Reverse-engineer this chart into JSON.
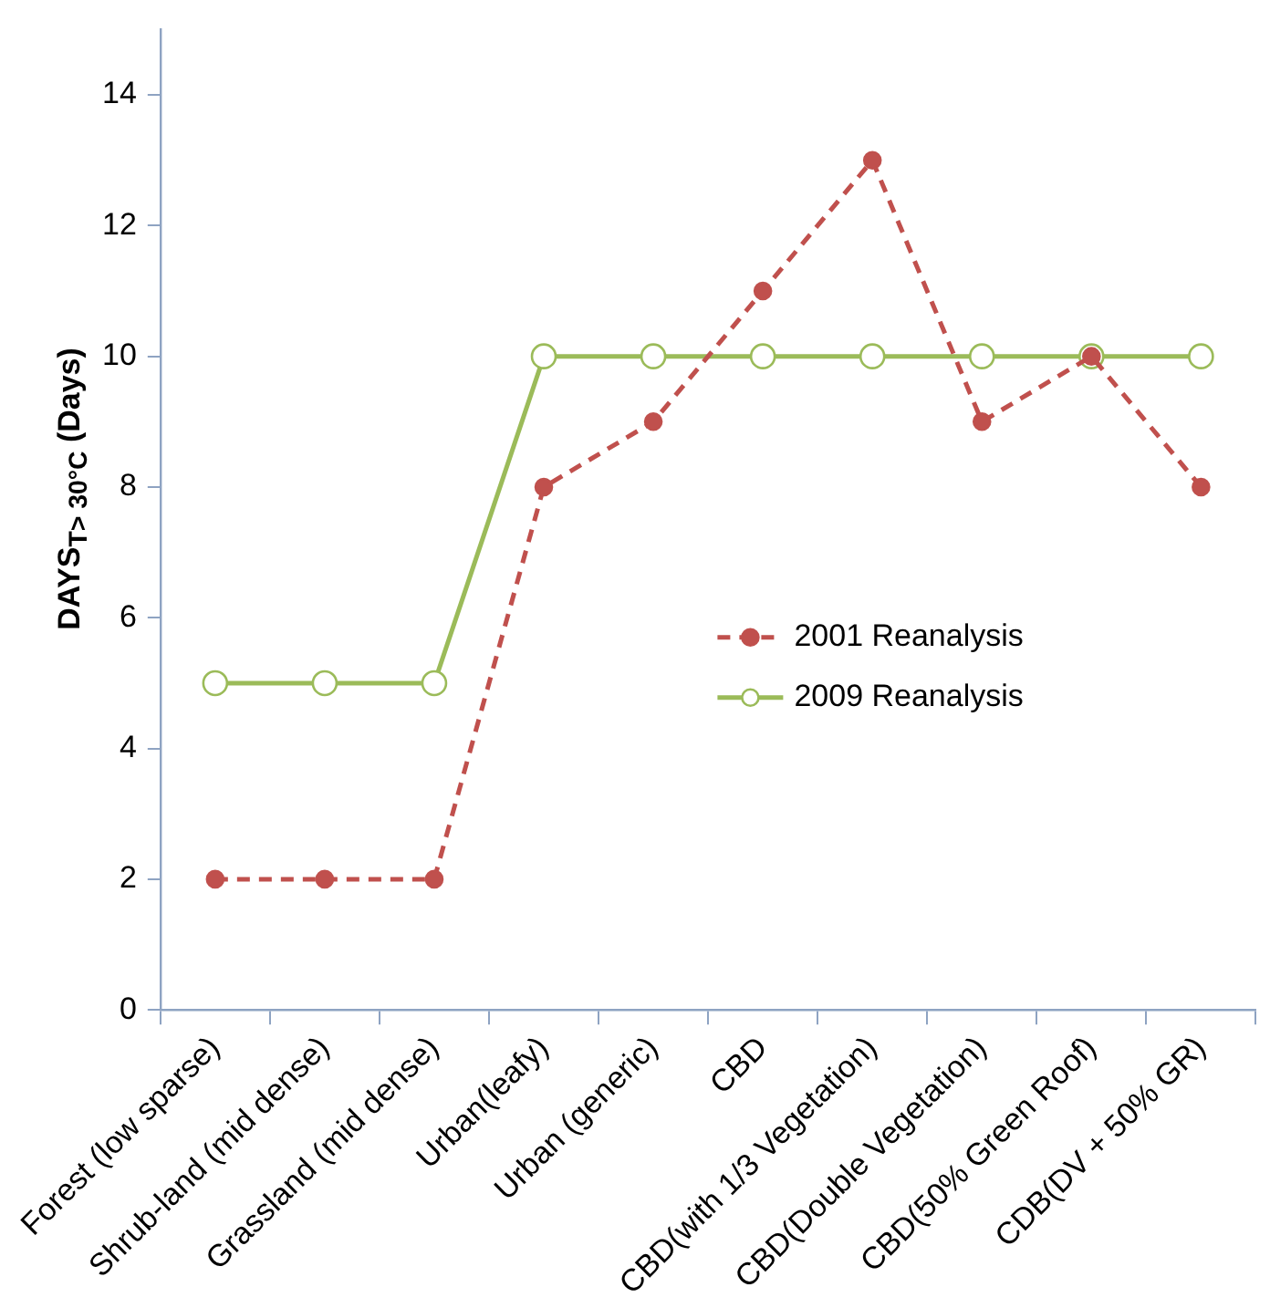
{
  "chart_data": {
    "type": "line",
    "ylabel": "DAYS$_{T> 30°C}$ (Days)",
    "categories": [
      "Forest (low sparse)",
      "Shrub-land (mid dense)",
      "Grassland (mid dense)",
      "Urban(leafy)",
      "Urban (generic)",
      "CBD",
      "CBD(with 1/3 Vegetation)",
      "CBD(Double Vegetation)",
      "CBD(50% Green Roof)",
      "CDB(DV + 50% GR)"
    ],
    "series": [
      {
        "name": "2001 Reanalysis",
        "color": "#c0504d",
        "line_style": "dashed",
        "marker": "circle",
        "values": [
          2,
          2,
          2,
          8,
          9,
          11,
          13,
          9,
          10,
          8
        ]
      },
      {
        "name": "2009 Reanalysis",
        "color": "#9bbb59",
        "line_style": "solid",
        "marker": "circle",
        "values": [
          5,
          5,
          5,
          10,
          10,
          10,
          10,
          10,
          10,
          10
        ]
      }
    ],
    "ylim": [
      0,
      15
    ],
    "yticks": [
      0,
      2,
      4,
      6,
      8,
      10,
      12,
      14
    ],
    "grid": false,
    "legend": "right"
  }
}
